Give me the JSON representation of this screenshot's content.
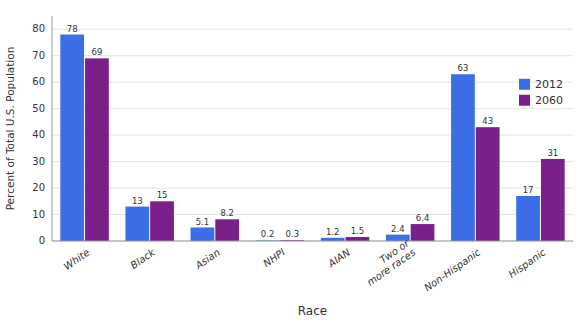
{
  "chart_data": {
    "type": "bar",
    "x_label": "Race",
    "y_label": "Percent of Total U.S. Population",
    "categories": [
      "White",
      "Black",
      "Asian",
      "NHPI",
      "AIAN",
      "Two or\nmore races",
      "Non-Hispanic",
      "Hispanic"
    ],
    "series": [
      {
        "name": "2012",
        "color": "#3C6EE8",
        "values": [
          78,
          13,
          5.1,
          0.2,
          1.2,
          2.4,
          63,
          17
        ]
      },
      {
        "name": "2060",
        "color": "#7B1F8A",
        "values": [
          69,
          15,
          8.2,
          0.3,
          1.5,
          6.4,
          43,
          31
        ]
      }
    ],
    "ylim": [
      0,
      85
    ],
    "yticks": [
      0,
      10,
      20,
      30,
      40,
      50,
      60,
      70,
      80
    ],
    "grid": true,
    "legend": "right",
    "data_labels": true
  }
}
